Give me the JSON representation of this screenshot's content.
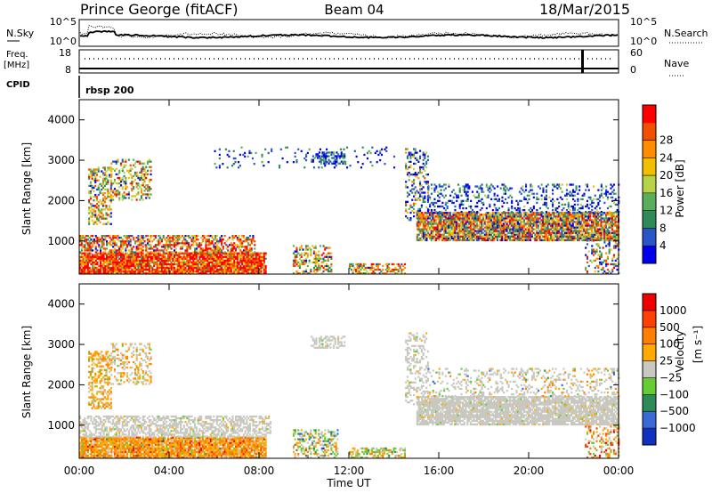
{
  "header": {
    "station": "Prince George (fitACF)",
    "beam": "Beam 04",
    "date": "18/Mar/2015"
  },
  "top_panels": {
    "nsky_label": "N.Sky",
    "nsearch_label": "N.Search",
    "nsky_ticks": [
      "10^5",
      "10^0"
    ],
    "nsearch_ticks": [
      "10^5",
      "10^0"
    ],
    "freq_label_1": "Freq.",
    "freq_label_2": "[MHz]",
    "freq_ticks": [
      "18",
      "8"
    ],
    "nave_label": "Nave",
    "nave_ticks": [
      "60",
      "0"
    ],
    "cpid_label": "CPID",
    "cpid_value": "rbsp 200"
  },
  "chart_data": [
    {
      "type": "heatmap",
      "name": "power",
      "xlabel": "Time UT",
      "ylabel": "Slant Range [km]",
      "x_ticks": [
        "00:00",
        "04:00",
        "08:00",
        "12:00",
        "16:00",
        "20:00",
        "00:00"
      ],
      "y_ticks": [
        1000,
        2000,
        3000,
        4000
      ],
      "ylim": [
        180,
        4500
      ],
      "xlim_hours": [
        0,
        24
      ],
      "colorbar": {
        "label": "Power [dB]",
        "ticks": [
          4,
          8,
          12,
          16,
          20,
          24,
          28
        ],
        "range": [
          0,
          30
        ],
        "colors": [
          "#0000ee",
          "#2a55c8",
          "#2e8b57",
          "#5aad5a",
          "#b8d24a",
          "#f0c000",
          "#ff8c00",
          "#f05000",
          "#ff0000"
        ]
      }
    },
    {
      "type": "heatmap",
      "name": "velocity",
      "xlabel": "Time UT",
      "ylabel": "Slant Range [km]",
      "x_ticks": [
        "00:00",
        "04:00",
        "08:00",
        "12:00",
        "16:00",
        "20:00",
        "00:00"
      ],
      "y_ticks": [
        1000,
        2000,
        3000,
        4000
      ],
      "ylim": [
        180,
        4500
      ],
      "xlim_hours": [
        0,
        24
      ],
      "colorbar": {
        "label": "Velocity",
        "unit": "[m s⁻¹]",
        "ticks": [
          "1000",
          "500",
          "100",
          "25",
          "−25",
          "−100",
          "−500",
          "−1000"
        ],
        "colors": [
          "#1030c0",
          "#3a6ad6",
          "#2e8b57",
          "#66cc33",
          "#c8c8c0",
          "#ffaa00",
          "#ff8000",
          "#ff4000",
          "#ee0000"
        ]
      }
    }
  ]
}
